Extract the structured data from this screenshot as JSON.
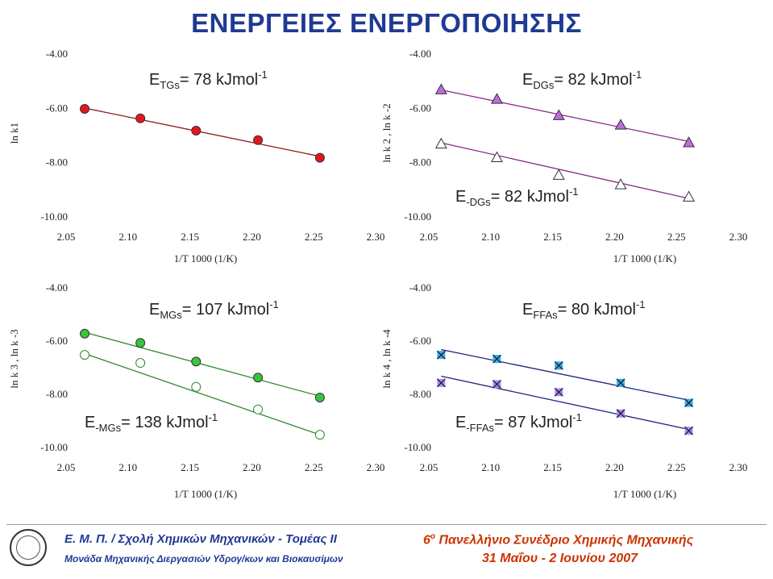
{
  "title": "ΕΝΕΡΓΕΙΕΣ ΕΝΕΡΓΟΠΟΙΗΣΗΣ",
  "footer": {
    "left_line1": "Ε. Μ. Π. / Σχολή Χημικών Μηχανικών - Τομέας ΙΙ",
    "left_line2": "Μονάδα Μηχανικής Διεργασιών Υδρογ/κων και Βιοκαυσίμων",
    "right_line1_prefix": "6",
    "right_line1_sup": "ο",
    "right_line1_rest": " Πανελλήνιο Συνέδριο Χημικής Μηχανικής",
    "right_line2": "31 Μαΐου - 2 Ιουνίου 2007"
  },
  "colors": {
    "title": "#1f3a93",
    "footer_left": "#1f3a93",
    "footer_right": "#cc3300"
  },
  "chart_data": [
    {
      "type": "scatter",
      "panel": "top-left",
      "xlabel": "1/T 1000 (1/K)",
      "ylabel": "ln k1",
      "xlim": [
        2.05,
        2.3
      ],
      "ylim": [
        -10.0,
        -4.0
      ],
      "x_ticks": [
        "2.05",
        "2.10",
        "2.15",
        "2.20",
        "2.25",
        "2.30"
      ],
      "y_ticks": [
        "-4.00",
        "-6.00",
        "-8.00",
        "-10.00"
      ],
      "grid": false,
      "annotations": [
        {
          "main": "E",
          "sub": "TGs",
          "value": "= 78 kJmol",
          "sup": "-1"
        }
      ],
      "series": [
        {
          "marker": "filled-circle",
          "color": "#e8141b",
          "line_color": "#8b1a1a",
          "x": [
            2.065,
            2.11,
            2.155,
            2.205,
            2.255
          ],
          "y": [
            -6.05,
            -6.4,
            -6.85,
            -7.2,
            -7.85
          ],
          "fit": [
            [
              2.065,
              -6.02
            ],
            [
              2.255,
              -7.8
            ]
          ]
        }
      ]
    },
    {
      "type": "scatter",
      "panel": "top-right",
      "xlabel": "1/T 1000 (1/K)",
      "ylabel": "ln k 2 , ln k -2",
      "xlim": [
        2.05,
        2.3
      ],
      "ylim": [
        -10.0,
        -4.0
      ],
      "x_ticks": [
        "2.05",
        "2.10",
        "2.15",
        "2.20",
        "2.25",
        "2.30"
      ],
      "y_ticks": [
        "-4.00",
        "-6.00",
        "-8.00",
        "-10.00"
      ],
      "grid": false,
      "annotations": [
        {
          "main": "E",
          "sub": "DGs",
          "value": "= 82 kJmol",
          "sup": "-1"
        },
        {
          "main": "E",
          "sub": "-DGs",
          "value": "= 82 kJmol",
          "sup": "-1"
        }
      ],
      "series": [
        {
          "marker": "filled-triangle",
          "color": "#c06adf",
          "line_color": "#8b2a8b",
          "x": [
            2.06,
            2.105,
            2.155,
            2.205,
            2.26
          ],
          "y": [
            -5.35,
            -5.7,
            -6.3,
            -6.65,
            -7.3
          ],
          "fit": [
            [
              2.06,
              -5.35
            ],
            [
              2.26,
              -7.25
            ]
          ]
        },
        {
          "marker": "open-triangle",
          "color": "#ffffff",
          "line_color": "#8b2a8b",
          "x": [
            2.06,
            2.105,
            2.155,
            2.205,
            2.26
          ],
          "y": [
            -7.35,
            -7.85,
            -8.5,
            -8.85,
            -9.3
          ],
          "fit": [
            [
              2.06,
              -7.3
            ],
            [
              2.26,
              -9.35
            ]
          ]
        }
      ]
    },
    {
      "type": "scatter",
      "panel": "bottom-left",
      "xlabel": "1/T 1000 (1/K)",
      "ylabel": "ln k 3 , ln k -3",
      "xlim": [
        2.05,
        2.3
      ],
      "ylim": [
        -10.0,
        -4.0
      ],
      "x_ticks": [
        "2.05",
        "2.10",
        "2.15",
        "2.20",
        "2.25",
        "2.30"
      ],
      "y_ticks": [
        "-4.00",
        "-6.00",
        "-8.00",
        "-10.00"
      ],
      "grid": false,
      "annotations": [
        {
          "main": "E",
          "sub": "MGs",
          "value": "= 107 kJmol",
          "sup": "-1"
        },
        {
          "main": "E",
          "sub": "-MGs",
          "value": "= 138 kJmol",
          "sup": "-1"
        }
      ],
      "series": [
        {
          "marker": "filled-circle",
          "color": "#39c43a",
          "line_color": "#2f8a2f",
          "x": [
            2.065,
            2.11,
            2.155,
            2.205,
            2.255
          ],
          "y": [
            -5.75,
            -6.1,
            -6.8,
            -7.4,
            -8.15
          ],
          "fit": [
            [
              2.065,
              -5.7
            ],
            [
              2.255,
              -8.1
            ]
          ]
        },
        {
          "marker": "open-circle",
          "color": "#ffffff",
          "line_color": "#2f8a2f",
          "x": [
            2.065,
            2.11,
            2.155,
            2.205,
            2.255
          ],
          "y": [
            -6.55,
            -6.85,
            -7.75,
            -8.6,
            -9.55
          ],
          "fit": [
            [
              2.065,
              -6.5
            ],
            [
              2.255,
              -9.55
            ]
          ]
        }
      ]
    },
    {
      "type": "scatter",
      "panel": "bottom-right",
      "xlabel": "1/T 1000 (1/K)",
      "ylabel": "ln k 4 , ln k -4",
      "xlim": [
        2.05,
        2.3
      ],
      "ylim": [
        -10.0,
        -4.0
      ],
      "x_ticks": [
        "2.05",
        "2.10",
        "2.15",
        "2.20",
        "2.25",
        "2.30"
      ],
      "y_ticks": [
        "-4.00",
        "-6.00",
        "-8.00",
        "-10.00"
      ],
      "grid": false,
      "annotations": [
        {
          "main": "E",
          "sub": "FFAs",
          "value": "= 80 kJmol",
          "sup": "-1"
        },
        {
          "main": "E",
          "sub": "-FFAs",
          "value": "= 87 kJmol",
          "sup": "-1"
        }
      ],
      "series": [
        {
          "marker": "x-in-blue-square",
          "color": "#3aaee8",
          "line_color": "#1a237e",
          "x": [
            2.06,
            2.105,
            2.155,
            2.205,
            2.26
          ],
          "y": [
            -6.55,
            -6.7,
            -6.95,
            -7.6,
            -8.35
          ],
          "fit": [
            [
              2.06,
              -6.35
            ],
            [
              2.26,
              -8.25
            ]
          ]
        },
        {
          "marker": "x-in-purple-square",
          "color": "#b28cf0",
          "line_color": "#1a237e",
          "x": [
            2.06,
            2.105,
            2.155,
            2.205,
            2.26
          ],
          "y": [
            -7.6,
            -7.65,
            -7.95,
            -8.75,
            -9.4
          ],
          "fit": [
            [
              2.06,
              -7.35
            ],
            [
              2.26,
              -9.35
            ]
          ]
        }
      ]
    }
  ]
}
